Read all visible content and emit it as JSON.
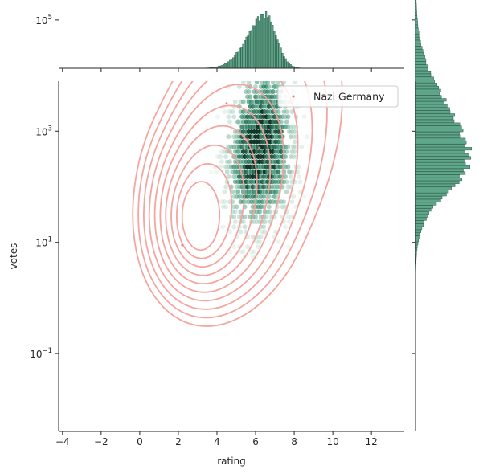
{
  "chart_data": {
    "type": "jointplot",
    "xlabel": "rating",
    "ylabel": "votes",
    "xlim": [
      -4.2,
      13.7
    ],
    "ylim_log10": [
      -2.4,
      3.9
    ],
    "x_ticks": [
      -4,
      -2,
      0,
      2,
      4,
      6,
      8,
      10,
      12
    ],
    "y_ticks": [
      {
        "exp": -1,
        "base": "10",
        "sup": "−1"
      },
      {
        "exp": 1,
        "base": "10",
        "sup": "1"
      },
      {
        "exp": 3,
        "base": "10",
        "sup": "3"
      },
      {
        "exp": 5,
        "base": "10",
        "sup": "5"
      }
    ],
    "legend": {
      "label": "Nazi Germany",
      "placement": "upper-right"
    },
    "colors": {
      "hex": "#2e8b6a",
      "hist": "#5fa68a",
      "hist_edge": "#2f5f4c",
      "kde": "#f4a09a",
      "scatter": "#f08080"
    },
    "kde_peak": {
      "x": 3.0,
      "log10_votes": 1.4
    },
    "kde_levels": 10,
    "scatter_points": [
      {
        "x": 2.2,
        "log10_votes": 0.95
      },
      {
        "x": 4.5,
        "log10_votes": 3.5
      },
      {
        "x": 5.6,
        "log10_votes": 2.85
      },
      {
        "x": 6.2,
        "log10_votes": 2.7
      }
    ],
    "hex_density_center": {
      "x": 6.5,
      "log10_votes": 2.8
    },
    "marginal_x_peak": 6.5,
    "marginal_y_peak_log10": 2.5
  }
}
